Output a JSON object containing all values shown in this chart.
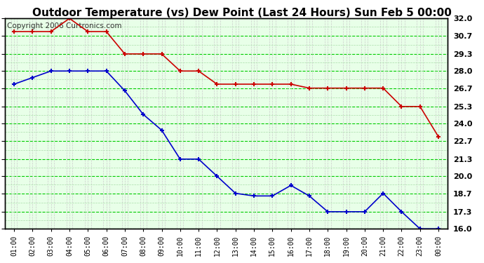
{
  "title": "Outdoor Temperature (vs) Dew Point (Last 24 Hours) Sun Feb 5 00:00",
  "copyright": "Copyright 2006 Curtronics.com",
  "x_labels": [
    "01:00",
    "02:00",
    "03:00",
    "04:00",
    "05:00",
    "06:00",
    "07:00",
    "08:00",
    "09:00",
    "10:00",
    "11:00",
    "12:00",
    "13:00",
    "14:00",
    "15:00",
    "16:00",
    "17:00",
    "18:00",
    "19:00",
    "20:00",
    "21:00",
    "22:00",
    "23:00",
    "00:00"
  ],
  "temp_red": [
    31.0,
    31.0,
    31.0,
    32.0,
    31.0,
    31.0,
    29.3,
    29.3,
    29.3,
    28.0,
    28.0,
    27.0,
    27.0,
    27.0,
    27.0,
    27.0,
    26.7,
    26.7,
    26.7,
    26.7,
    26.7,
    25.3,
    25.3,
    23.0
  ],
  "dew_blue": [
    27.0,
    27.5,
    28.0,
    28.0,
    28.0,
    28.0,
    26.5,
    24.7,
    23.5,
    21.3,
    21.3,
    20.0,
    18.7,
    18.5,
    18.5,
    19.3,
    18.5,
    17.3,
    17.3,
    17.3,
    18.7,
    17.3,
    16.0,
    16.0
  ],
  "ylim_min": 16.0,
  "ylim_max": 32.0,
  "yticks": [
    16.0,
    17.3,
    18.7,
    20.0,
    21.3,
    22.7,
    24.0,
    25.3,
    26.7,
    28.0,
    29.3,
    30.7,
    32.0
  ],
  "bg_color": "#ffffff",
  "plot_bg_color": "#e8ffe8",
  "grid_major_color": "#00cc00",
  "grid_minor_color": "#aaddaa",
  "vert_grid_color": "#cccccc",
  "red_color": "#cc0000",
  "blue_color": "#0000cc",
  "title_fontsize": 11,
  "copyright_fontsize": 7.5
}
